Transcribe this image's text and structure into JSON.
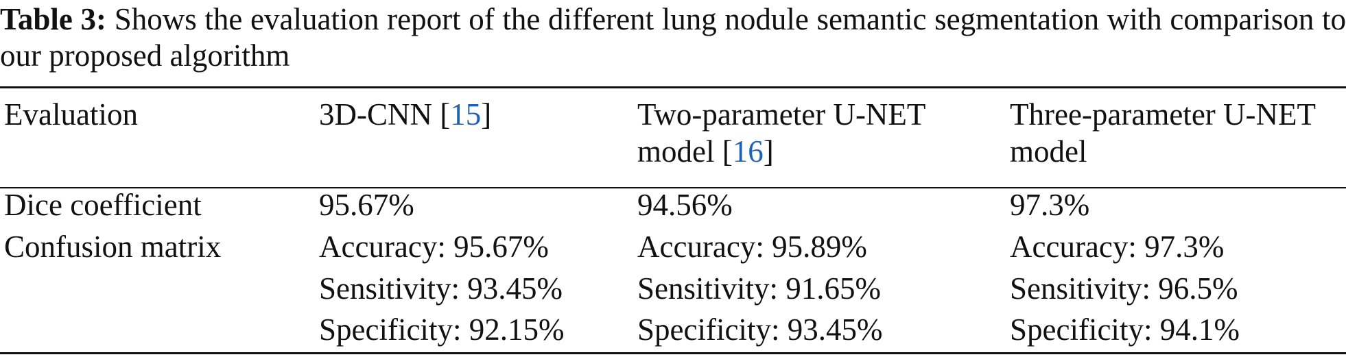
{
  "caption": {
    "label": "Table 3:",
    "text": "Shows the evaluation report of the different lung nodule semantic segmentation with comparison to our proposed algorithm"
  },
  "table": {
    "header": [
      [
        "Evaluation"
      ],
      [
        "3D-CNN [",
        "15",
        "]"
      ],
      [
        "Two-parameter U-NET model [",
        "16",
        "]"
      ],
      [
        "Three-parameter U-NET model"
      ]
    ],
    "rows": [
      [
        [
          "Dice coefficient"
        ],
        [
          "95.67%"
        ],
        [
          "94.56%"
        ],
        [
          "97.3%"
        ]
      ],
      [
        [
          "Confusion matrix"
        ],
        [
          "Accuracy: 95.67%",
          "Sensitivity: 93.45%",
          "Specificity: 92.15%"
        ],
        [
          "Accuracy: 95.89%",
          "Sensitivity: 91.65%",
          "Specificity: 93.45%"
        ],
        [
          "Accuracy: 97.3%",
          "Sensitivity: 96.5%",
          "Specificity: 94.1%"
        ]
      ]
    ]
  }
}
